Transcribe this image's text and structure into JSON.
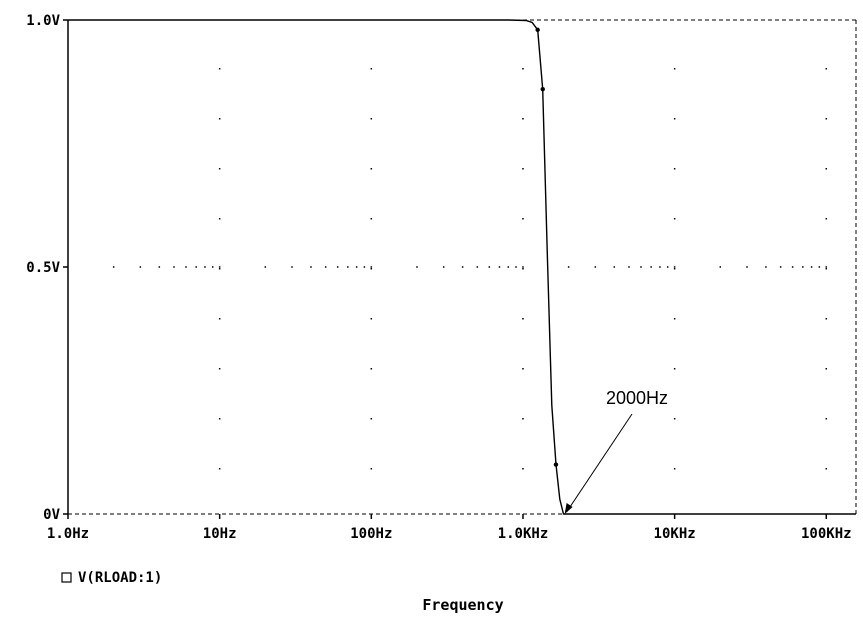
{
  "chart_data": {
    "type": "line",
    "title": "",
    "xlabel": "Frequency",
    "ylabel": "",
    "xscale": "log",
    "xlim": [
      1,
      200000
    ],
    "ylim": [
      0,
      1.0
    ],
    "grid": true,
    "legend_placement": "bottom-left",
    "x_ticks": [
      {
        "value": 1,
        "label": "1.0Hz"
      },
      {
        "value": 10,
        "label": "10Hz"
      },
      {
        "value": 100,
        "label": "100Hz"
      },
      {
        "value": 1000,
        "label": "1.0KHz"
      },
      {
        "value": 10000,
        "label": "10KHz"
      },
      {
        "value": 100000,
        "label": "100KHz"
      }
    ],
    "y_ticks": [
      {
        "value": 0,
        "label": "0V"
      },
      {
        "value": 0.5,
        "label": "0.5V"
      },
      {
        "value": 1.0,
        "label": "1.0V"
      }
    ],
    "series": [
      {
        "name": "V(RLOAD:1)",
        "x": [
          1,
          10,
          100,
          800,
          1050,
          1150,
          1250,
          1350,
          1450,
          1550,
          1650,
          1750,
          1850,
          1900,
          2000,
          3000,
          10000,
          100000,
          200000
        ],
        "values": [
          1.0,
          1.0,
          1.0,
          1.0,
          0.999,
          0.995,
          0.98,
          0.86,
          0.52,
          0.22,
          0.1,
          0.03,
          0.0,
          0.0,
          0.0,
          0.0,
          0.0,
          0.0,
          0.0
        ]
      }
    ],
    "annotations": [
      {
        "text": "2000Hz",
        "x": 2000,
        "y": 0
      }
    ],
    "colors": {
      "line": "#000000",
      "axes": "#000000",
      "background": "#ffffff"
    }
  }
}
